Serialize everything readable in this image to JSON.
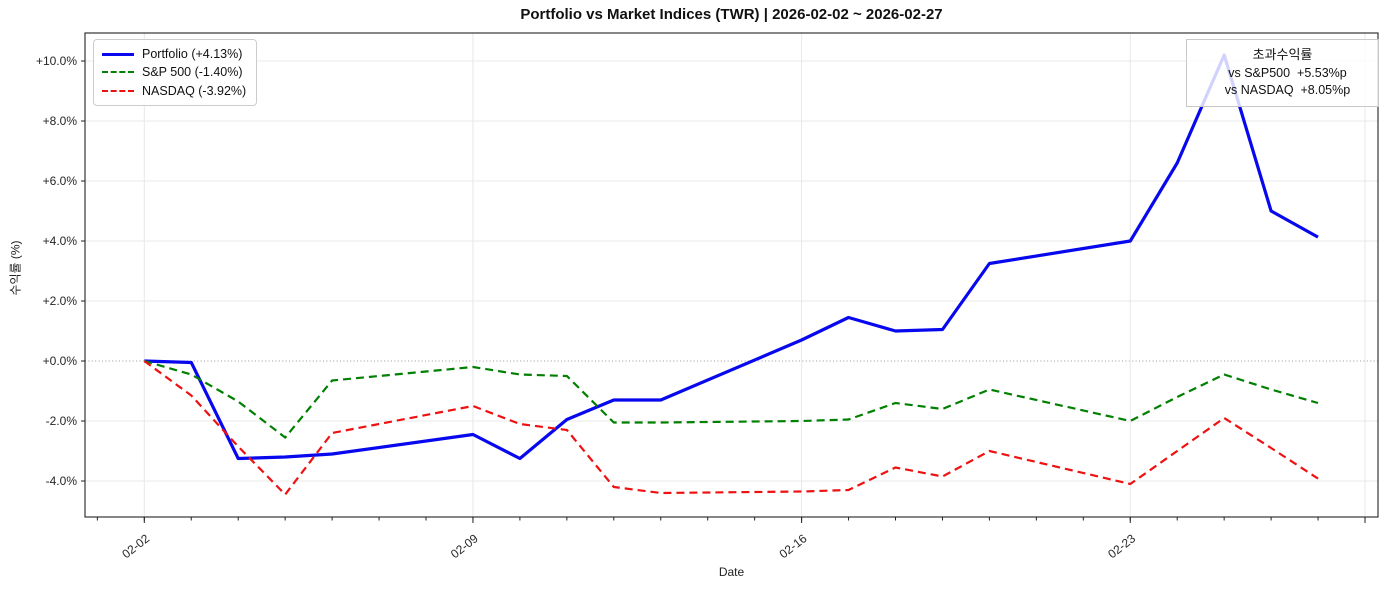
{
  "chart_data": {
    "type": "line",
    "title": "Portfolio vs Market Indices (TWR) | 2026-02-02 ~ 2026-02-27",
    "xlabel": "Date",
    "ylabel": "수익률 (%)",
    "grid": true,
    "ylim": [
      -5.2,
      10.93
    ],
    "dates": [
      "02-02",
      "02-03",
      "02-04",
      "02-05",
      "02-06",
      "02-09",
      "02-10",
      "02-11",
      "02-12",
      "02-13",
      "02-16",
      "02-17",
      "02-18",
      "02-19",
      "02-20",
      "02-23",
      "02-24",
      "02-25",
      "02-26",
      "02-27"
    ],
    "day_offsets": [
      0,
      1,
      2,
      3,
      4,
      7,
      8,
      9,
      10,
      11,
      14,
      15,
      16,
      17,
      18,
      21,
      22,
      23,
      24,
      25
    ],
    "series": [
      {
        "name": "Portfolio",
        "color": "#0808ee",
        "dash": "solid",
        "width": 3.2,
        "values": [
          0.0,
          -0.05,
          -3.25,
          -3.2,
          -3.1,
          -2.45,
          -3.25,
          -1.95,
          -1.3,
          -1.3,
          0.7,
          1.45,
          1.0,
          1.05,
          3.25,
          4.0,
          6.6,
          10.2,
          5.0,
          4.13
        ]
      },
      {
        "name": "S&P 500",
        "color": "#008000",
        "dash": "dashed",
        "width": 2.2,
        "values": [
          0.0,
          -0.45,
          -1.35,
          -2.55,
          -0.65,
          -0.2,
          -0.45,
          -0.5,
          -2.05,
          -2.05,
          -2.0,
          -1.95,
          -1.4,
          -1.6,
          -0.95,
          -2.0,
          -1.2,
          -0.45,
          -0.95,
          -1.4
        ]
      },
      {
        "name": "NASDAQ",
        "color": "#ee1111",
        "dash": "dashed",
        "width": 2.2,
        "values": [
          0.0,
          -1.15,
          -2.85,
          -4.45,
          -2.4,
          -1.5,
          -2.1,
          -2.3,
          -4.2,
          -4.4,
          -4.35,
          -4.3,
          -3.55,
          -3.85,
          -3.0,
          -4.1,
          -3.0,
          -1.9,
          -2.9,
          -3.92
        ]
      }
    ],
    "x_ticks": [
      {
        "day": 0,
        "label": "02-02"
      },
      {
        "day": 7,
        "label": "02-09"
      },
      {
        "day": 14,
        "label": "02-16"
      },
      {
        "day": 21,
        "label": "02-23"
      },
      {
        "day": 26,
        "label": ""
      }
    ],
    "y_ticks": [
      {
        "v": 10,
        "label": "+10.0%"
      },
      {
        "v": 8,
        "label": "+8.0%"
      },
      {
        "v": 6,
        "label": "+6.0%"
      },
      {
        "v": 4,
        "label": "+4.0%"
      },
      {
        "v": 2,
        "label": "+2.0%"
      },
      {
        "v": 0,
        "label": "+0.0%"
      },
      {
        "v": -2,
        "label": "-2.0%"
      },
      {
        "v": -4,
        "label": "-4.0%"
      }
    ],
    "legend": {
      "position": "upper left",
      "items": [
        {
          "label": "Portfolio (+4.13%)",
          "color": "#0808ee",
          "style": "solid"
        },
        {
          "label": "S&P 500 (-1.40%)",
          "color": "#008000",
          "style": "dashed"
        },
        {
          "label": "NASDAQ (-3.92%)",
          "color": "#ee1111",
          "style": "dashed"
        }
      ]
    }
  },
  "annotation_box": {
    "title": "초과수익률",
    "lines": [
      "vs S&P500  +5.53%p",
      "vs NASDAQ  +8.05%p"
    ]
  },
  "colors": {
    "portfolio": "#0808ee",
    "sp500": "#008000",
    "nasdaq": "#ee1111",
    "gridline": "#e8e8e8",
    "zero_line": "#999999",
    "spine": "#222222"
  }
}
